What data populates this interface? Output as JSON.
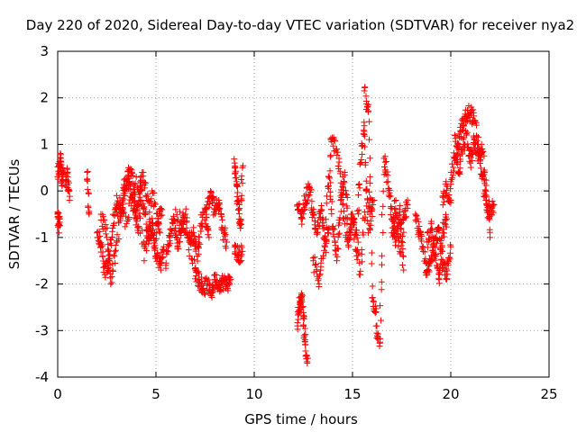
{
  "chart_data": {
    "type": "scatter",
    "title": "Day 220 of 2020, Sidereal Day-to-day VTEC variation (SDTVAR) for receiver nya2",
    "xlabel": "GPS time / hours",
    "ylabel": "SDTVAR / TECUs",
    "xlim": [
      0,
      25
    ],
    "ylim": [
      -4,
      3
    ],
    "xticks": [
      "0",
      "5",
      "10",
      "15",
      "20",
      "25"
    ],
    "yticks": [
      "-4",
      "-3",
      "-2",
      "-1",
      "0",
      "1",
      "2",
      "3"
    ],
    "grid": true,
    "marker": "+",
    "marker_color": "#ff0000",
    "series": [
      {
        "name": "SDTVAR",
        "segments": [
          {
            "x": [
              0.0,
              0.08,
              0.15,
              0.22,
              0.3
            ],
            "y": [
              0.3,
              0.55,
              0.7,
              0.2,
              0.4
            ]
          },
          {
            "x": [
              0.0,
              0.05,
              0.1
            ],
            "y": [
              -0.5,
              -0.7,
              -0.75
            ]
          },
          {
            "x": [
              0.4,
              0.5,
              0.6
            ],
            "y": [
              0.2,
              0.4,
              -0.2
            ]
          },
          {
            "x": [
              1.5,
              1.6
            ],
            "y": [
              0.4,
              -0.5
            ]
          },
          {
            "x": [
              2.0,
              2.2,
              2.4,
              2.6,
              2.8,
              3.0,
              3.2,
              3.4,
              3.6,
              3.8,
              4.0,
              4.2,
              4.4,
              4.6,
              4.8,
              5.0,
              5.2,
              5.4
            ],
            "y": [
              -0.9,
              -1.2,
              -1.8,
              -1.5,
              -0.8,
              -0.3,
              -0.5,
              0.1,
              0.3,
              -0.2,
              -0.6,
              0.2,
              -0.4,
              -1.0,
              -0.7,
              -1.4,
              -1.6,
              -1.2
            ]
          },
          {
            "x": [
              2.2,
              2.5,
              2.7,
              3.0,
              3.3,
              3.6,
              3.9,
              4.1,
              4.3,
              4.6,
              4.9,
              5.1,
              5.3
            ],
            "y": [
              -0.5,
              -1.0,
              -2.0,
              -1.1,
              -0.2,
              0.5,
              0.1,
              -0.9,
              0.4,
              -0.2,
              -1.2,
              -0.6,
              -0.4
            ]
          },
          {
            "x": [
              3.0,
              3.5,
              4.0,
              4.4,
              4.8,
              5.2
            ],
            "y": [
              -0.1,
              -0.7,
              0.3,
              -1.5,
              0.0,
              -0.9
            ]
          },
          {
            "x": [
              5.5,
              5.7,
              5.9,
              6.1,
              6.3,
              6.5,
              6.7,
              6.9,
              7.1,
              7.3,
              7.5,
              7.7
            ],
            "y": [
              -1.6,
              -1.0,
              -0.6,
              -1.2,
              -0.8,
              -0.5,
              -1.1,
              -0.9,
              -1.4,
              -0.7,
              -0.4,
              -1.0
            ]
          },
          {
            "x": [
              6.0,
              6.5,
              7.0,
              7.2,
              7.4,
              7.6,
              7.8,
              8.0,
              8.2,
              8.4,
              8.6,
              8.8
            ],
            "y": [
              -0.4,
              -0.9,
              -1.7,
              -1.9,
              -2.1,
              -2.0,
              -2.2,
              -1.9,
              -2.0,
              -1.95,
              -2.0,
              -1.9
            ]
          },
          {
            "x": [
              7.6,
              7.8,
              8.0,
              8.2,
              8.4,
              8.6
            ],
            "y": [
              -0.3,
              -0.1,
              -0.4,
              -0.2,
              -0.8,
              -1.1
            ]
          },
          {
            "x": [
              9.0,
              9.1,
              9.2,
              9.3,
              9.4
            ],
            "y": [
              0.6,
              0.2,
              -0.4,
              -0.8,
              0.5
            ]
          },
          {
            "x": [
              9.0,
              9.2,
              9.4
            ],
            "y": [
              -1.2,
              -1.4,
              -1.3
            ]
          },
          {
            "x": [
              12.2,
              12.4,
              12.6,
              12.8,
              13.0,
              13.2,
              13.4,
              13.6,
              13.8
            ],
            "y": [
              -0.3,
              -0.6,
              -0.2,
              0.1,
              -0.5,
              -0.9,
              -0.4,
              -1.2,
              -0.8
            ]
          },
          {
            "x": [
              12.2,
              12.3,
              12.4,
              12.5,
              12.6,
              12.7
            ],
            "y": [
              -2.9,
              -2.5,
              -2.2,
              -2.7,
              -3.3,
              -3.7
            ]
          },
          {
            "x": [
              13.0,
              13.3,
              13.6,
              13.9,
              14.2,
              14.5,
              14.8,
              15.1,
              15.4,
              15.7,
              16.0
            ],
            "y": [
              -1.5,
              -2.0,
              -1.0,
              1.1,
              0.9,
              -0.3,
              -1.2,
              -0.6,
              -1.8,
              0.0,
              -0.4
            ]
          },
          {
            "x": [
              13.8,
              14.0,
              14.2,
              14.4,
              14.6,
              14.8,
              15.0,
              15.2,
              15.4,
              15.6,
              15.8,
              16.1
            ],
            "y": [
              0.3,
              -0.8,
              -1.5,
              -0.2,
              0.4,
              -1.0,
              -0.5,
              -1.3,
              0.6,
              1.4,
              -0.9,
              -0.2
            ]
          },
          {
            "x": [
              15.6,
              15.8,
              16.0,
              16.2
            ],
            "y": [
              2.15,
              1.7,
              -2.3,
              -2.6
            ]
          },
          {
            "x": [
              16.2,
              16.4,
              16.6,
              16.8,
              17.0,
              17.2,
              17.4,
              17.6
            ],
            "y": [
              -2.9,
              -3.25,
              0.7,
              0.2,
              -0.6,
              -1.1,
              -0.4,
              -1.7
            ]
          },
          {
            "x": [
              17.0,
              17.2,
              17.4,
              17.6,
              17.8
            ],
            "y": [
              -0.9,
              -0.2,
              -1.3,
              -0.6,
              -0.3
            ]
          },
          {
            "x": [
              18.2,
              18.4,
              18.6,
              18.8,
              19.0,
              19.2,
              19.4,
              19.6,
              19.8,
              20.0
            ],
            "y": [
              -0.5,
              -0.9,
              -1.3,
              -1.8,
              -1.5,
              -1.0,
              -0.8,
              -1.6,
              -1.9,
              -1.2
            ]
          },
          {
            "x": [
              18.8,
              19.0,
              19.2,
              19.4,
              19.6,
              19.8
            ],
            "y": [
              -1.1,
              -0.7,
              -1.4,
              -1.9,
              -0.9,
              -0.6
            ]
          },
          {
            "x": [
              19.6,
              19.8,
              20.0
            ],
            "y": [
              -0.3,
              0.1,
              -0.2
            ]
          },
          {
            "x": [
              20.0,
              20.2,
              20.4,
              20.6,
              20.8,
              21.0,
              21.2,
              21.4,
              21.6,
              21.8,
              22.0,
              22.2
            ],
            "y": [
              0.2,
              0.7,
              1.0,
              1.4,
              1.6,
              1.7,
              1.5,
              1.0,
              0.3,
              -0.2,
              -0.5,
              -0.3
            ]
          },
          {
            "x": [
              20.2,
              20.4,
              20.6,
              20.8,
              21.0,
              21.2,
              21.4,
              21.6,
              21.8,
              22.0
            ],
            "y": [
              1.2,
              0.4,
              0.9,
              1.2,
              0.6,
              1.1,
              0.7,
              0.9,
              0.0,
              -1.0
            ]
          }
        ]
      }
    ]
  }
}
